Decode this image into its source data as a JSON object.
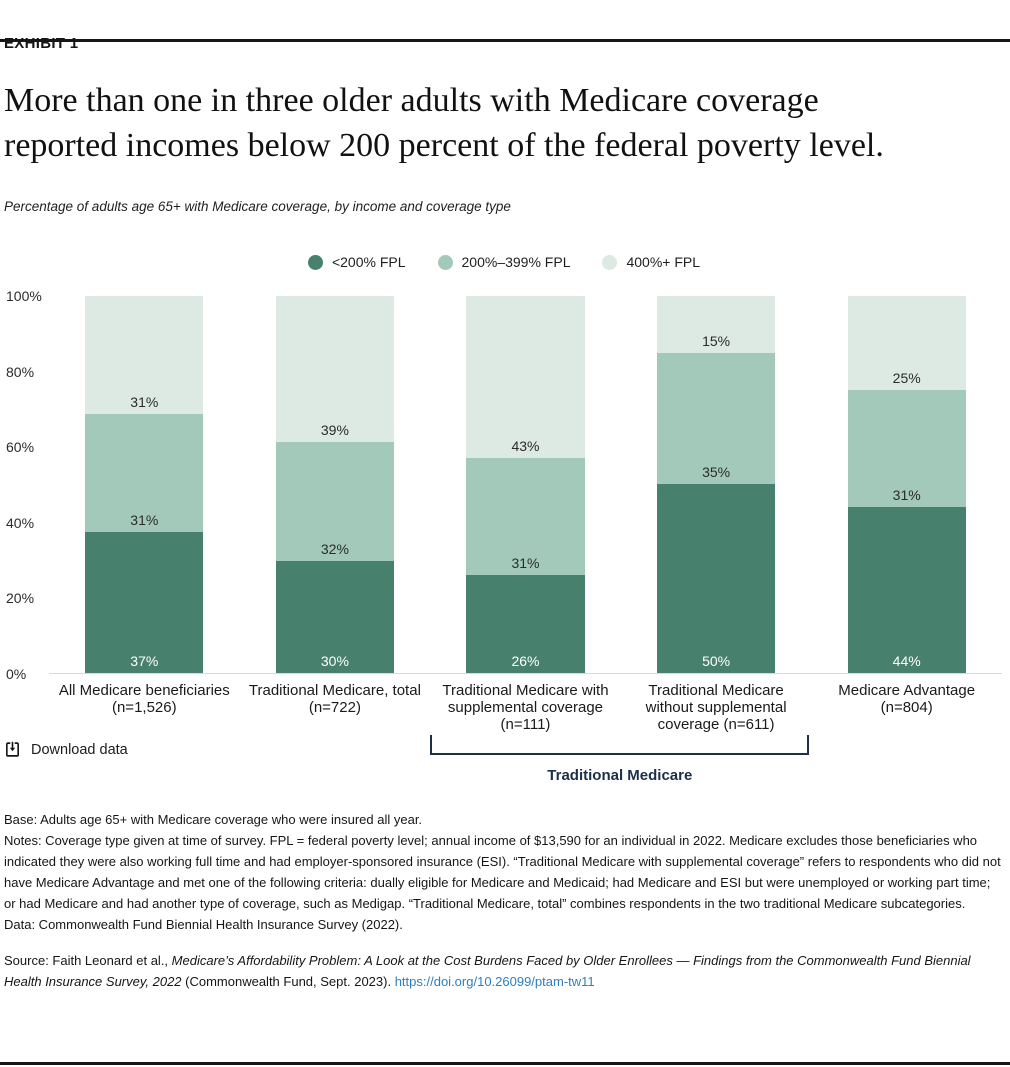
{
  "page": {
    "exhibit_label": "EXHIBIT 1",
    "title": "More than one in three older adults with Medicare coverage\nreported incomes below 200 percent of the federal poverty level.",
    "subtitle": "Percentage of adults age 65+ with Medicare coverage, by income and coverage type"
  },
  "colors": {
    "dark_green": "#47816E",
    "medium_green": "#A3C9BA",
    "light_green": "#DCEAE3",
    "bracket_navy": "#1B2F47",
    "link_blue": "#2E7FC0"
  },
  "legend": {
    "items": [
      {
        "label": "<200% FPL",
        "color": "#47816E"
      },
      {
        "label": "200%–399% FPL",
        "color": "#A3C9BA"
      },
      {
        "label": "400%+ FPL",
        "color": "#DCEAE3"
      }
    ]
  },
  "chart_data": {
    "type": "bar",
    "stacked": true,
    "title": "More than one in three older adults with Medicare coverage reported incomes below 200 percent of the federal poverty level.",
    "subtitle": "Percentage of adults age 65+ with Medicare coverage, by income and coverage type",
    "xlabel": "",
    "ylabel": "",
    "ylim": [
      0,
      100
    ],
    "grid": false,
    "legend_position": "top",
    "y_ticks": [
      "0%",
      "20%",
      "40%",
      "60%",
      "80%",
      "100%"
    ],
    "categories": [
      "All Medicare beneficiaries\n(n=1,526)",
      "Traditional Medicare, total\n(n=722)",
      "Traditional Medicare with\nsupplemental coverage\n(n=111)",
      "Traditional Medicare\nwithout supplemental\ncoverage (n=611)",
      "Medicare Advantage\n(n=804)"
    ],
    "series": [
      {
        "name": "<200% FPL",
        "key": "under-200-fpl",
        "color": "#47816E",
        "label_style": "light",
        "values": [
          37,
          30,
          26,
          50,
          44
        ]
      },
      {
        "name": "200%–399% FPL",
        "key": "200-399-fpl",
        "color": "#A3C9BA",
        "label_style": "dark",
        "values": [
          31,
          32,
          31,
          35,
          31
        ]
      },
      {
        "name": "400%+ FPL",
        "key": "400-plus-fpl",
        "color": "#DCEAE3",
        "label_style": "dark",
        "values": [
          31,
          39,
          43,
          15,
          25
        ]
      }
    ],
    "value_suffix": "%"
  },
  "annotations": {
    "bracket_label": "Traditional Medicare"
  },
  "toolbar": {
    "download_label": "Download data"
  },
  "notes": {
    "base": "Base: Adults age 65+ with Medicare coverage who were insured all year.",
    "notes": "Notes: Coverage type given at time of survey. FPL = federal poverty level; annual income of $13,590 for an individual in 2022. Medicare excludes those beneficiaries who indicated they were also working full time and had employer-sponsored insurance (ESI). “Traditional Medicare with supplemental coverage” refers to respondents who did not have Medicare Advantage and met one of the following criteria: dually eligible for Medicare and Medicaid; had Medicare and ESI but were unemployed or working part time; or had Medicare and had another type of coverage, such as Medigap. “Traditional Medicare, total” combines respondents in the two traditional Medicare subcategories.",
    "data": "Data: Commonwealth Fund Biennial Health Insurance Survey (2022)."
  },
  "source": {
    "prefix": "Source: Faith Leonard et al., ",
    "title_italic": "Medicare’s Affordability Problem: A Look at the Cost Burdens Faced by Older Enrollees — Findings from the Commonwealth Fund Biennial Health Insurance Survey, 2022",
    "suffix": " (Commonwealth Fund, Sept. 2023). ",
    "link": "https://doi.org/10.26099/ptam-tw11"
  }
}
